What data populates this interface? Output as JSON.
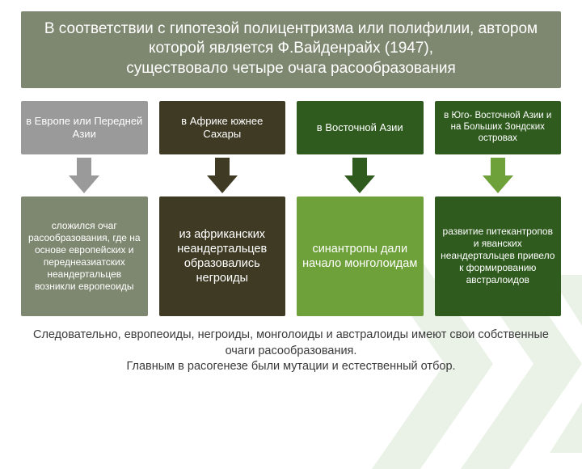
{
  "background": {
    "color": "#ffffff",
    "deco_color": "#3b8a2e"
  },
  "title": {
    "text": "В соответствии с гипотезой полицентризма или полифилии, автором которой является Ф.Вайденрайх (1947),\nсуществовало четыре очага расообразования",
    "bg": "#7e8870",
    "fg": "#ffffff",
    "fontsize": 19
  },
  "columns": [
    {
      "top_text": "в Европе или Передней Азии",
      "top_bg": "#9a9a9a",
      "top_fontsize": 13,
      "arrow_color": "#9a9a9a",
      "bottom_text": "сложился очаг расообразования, где на основе европейских и переднеазиатских неандертальцев возникли европеоиды",
      "bottom_bg": "#7e8870",
      "bottom_fontsize": 12
    },
    {
      "top_text": "в Африке южнее Сахары",
      "top_bg": "#3f3a24",
      "top_fontsize": 13,
      "arrow_color": "#3f3a24",
      "bottom_text": "из африканских неандертальцев образовались негроиды",
      "bottom_bg": "#3f3a24",
      "bottom_fontsize": 14
    },
    {
      "top_text": "в Восточной Азии",
      "top_bg": "#2f5b1e",
      "top_fontsize": 13,
      "arrow_color": "#2f5b1e",
      "bottom_text": "синантропы дали начало монголоидам",
      "bottom_bg": "#6fa13a",
      "bottom_fontsize": 15
    },
    {
      "top_text": "в Юго- Восточной Азии и на Больших Зондских островах",
      "top_bg": "#2f5b1e",
      "top_fontsize": 11,
      "arrow_color": "#6fa13a",
      "bottom_text": "развитие питекантропов и яванских неандертальцев привело к формированию австралоидов",
      "bottom_bg": "#2f5b1e",
      "bottom_fontsize": 12
    }
  ],
  "footer": {
    "text": "Следовательно, европеоиды, негроиды, монголоиды и австралоиды имеют свои собственные очаги расообразования.\nГлавным в расогенезе были мутации и естественный отбор.",
    "color": "#3a3a3a",
    "fontsize": 14
  },
  "layout": {
    "title_height": 96,
    "top_box_height": 66,
    "bottom_box_height": 148,
    "arrow_gap": 52,
    "column_gap": 14
  }
}
